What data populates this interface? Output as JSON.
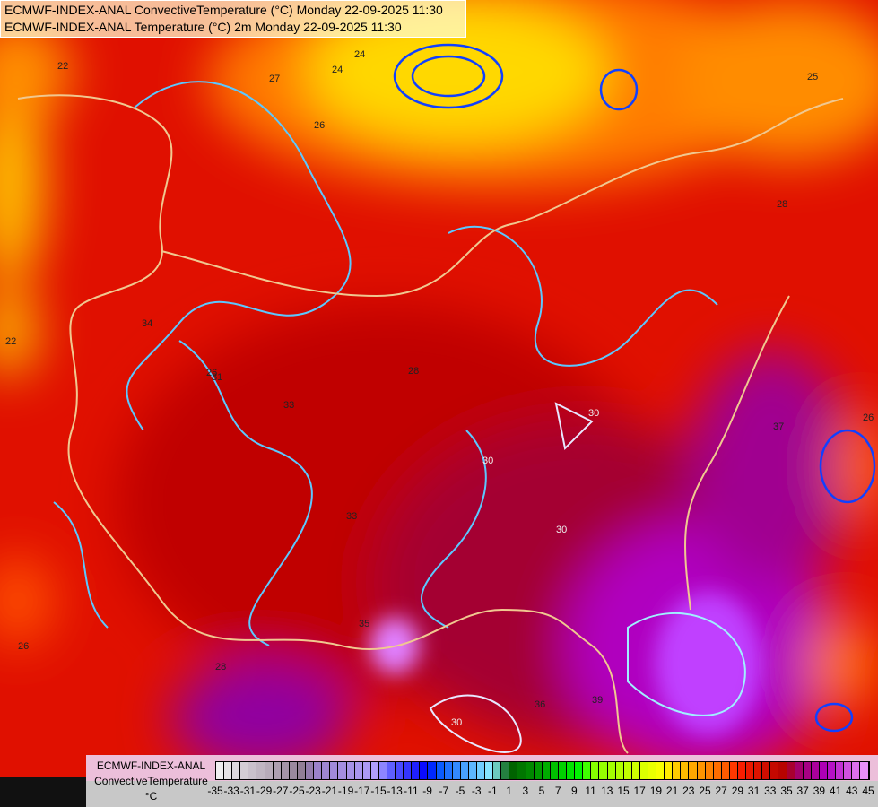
{
  "title": {
    "line1": "ECMWF-INDEX-ANAL ConvectiveTemperature (°C) Monday 22-09-2025 11:30",
    "line2": "ECMWF-INDEX-ANAL Temperature (°C) 2m Monday 22-09-2025 11:30"
  },
  "legend": {
    "line1": "ECMWF-INDEX-ANAL",
    "line2": "ConvectiveTemperature",
    "unit": "°C",
    "min": -35,
    "max": 45,
    "tick_labels": [
      "-35",
      "-33",
      "-31",
      "-29",
      "-27",
      "-25",
      "-23",
      "-21",
      "-19",
      "-17",
      "-15",
      "-13",
      "-11",
      "-9",
      "-7",
      "-5",
      "-3",
      "-1",
      "1",
      "3",
      "5",
      "7",
      "9",
      "11",
      "13",
      "15",
      "17",
      "19",
      "21",
      "23",
      "25",
      "27",
      "29",
      "31",
      "33",
      "35",
      "37",
      "39",
      "41",
      "43",
      "45"
    ],
    "color_stops": [
      {
        "value": -35,
        "color": "#f4f4f4"
      },
      {
        "value": -24,
        "color": "#8c7890"
      },
      {
        "value": -23,
        "color": "#9a80c8"
      },
      {
        "value": -15,
        "color": "#b0a0ff"
      },
      {
        "value": -14,
        "color": "#6a6aff"
      },
      {
        "value": -9,
        "color": "#0000ff"
      },
      {
        "value": -8,
        "color": "#0050ff"
      },
      {
        "value": -1,
        "color": "#90f0ff"
      },
      {
        "value": 1,
        "color": "#005a00"
      },
      {
        "value": 10,
        "color": "#00ff00"
      },
      {
        "value": 11,
        "color": "#80ff00"
      },
      {
        "value": 20,
        "color": "#ffff00"
      },
      {
        "value": 21,
        "color": "#ffd800"
      },
      {
        "value": 28,
        "color": "#ff5000"
      },
      {
        "value": 29,
        "color": "#ff2000"
      },
      {
        "value": 35,
        "color": "#b00000"
      },
      {
        "value": 36,
        "color": "#a00060"
      },
      {
        "value": 40,
        "color": "#b000c0"
      },
      {
        "value": 45,
        "color": "#f0a0ff"
      }
    ]
  },
  "contour_labels": [
    "22",
    "24",
    "26",
    "27",
    "28",
    "30",
    "31",
    "33",
    "34",
    "37",
    "39",
    "22",
    "24",
    "26",
    "28",
    "30",
    "30",
    "30",
    "33",
    "35",
    "36",
    "28",
    "26",
    "25",
    "26"
  ]
}
